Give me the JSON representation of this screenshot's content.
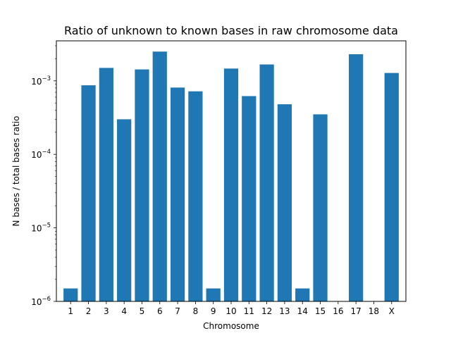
{
  "chart_data": {
    "type": "bar",
    "title": "Ratio of unknown to known bases in raw chromosome data",
    "xlabel": "Chromosome",
    "ylabel": "N bases / total bases ratio",
    "y_scale": "log",
    "ylim": [
      1e-06,
      0.0035
    ],
    "y_ticks": [
      {
        "value": 1e-06,
        "base": "10",
        "exp": "−6"
      },
      {
        "value": 1e-05,
        "base": "10",
        "exp": "−5"
      },
      {
        "value": 0.0001,
        "base": "10",
        "exp": "−4"
      },
      {
        "value": 0.001,
        "base": "10",
        "exp": "−3"
      }
    ],
    "categories": [
      "1",
      "2",
      "3",
      "4",
      "5",
      "6",
      "7",
      "8",
      "9",
      "10",
      "11",
      "12",
      "13",
      "14",
      "15",
      "16",
      "17",
      "18",
      "X"
    ],
    "values": [
      1.5e-06,
      0.00087,
      0.0015,
      0.0003,
      0.00143,
      0.0025,
      0.00081,
      0.00072,
      1.5e-06,
      0.00147,
      0.00062,
      0.00167,
      0.00048,
      1.5e-06,
      0.00035,
      0,
      0.0023,
      0,
      0.00128
    ],
    "bar_color": "#1f77b4",
    "grid": false,
    "legend": "none"
  }
}
